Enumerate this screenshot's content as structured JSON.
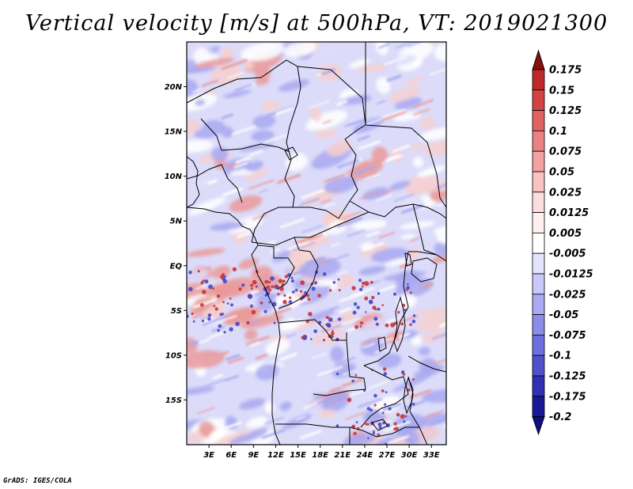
{
  "title": "Vertical velocity [m/s] at 500hPa, VT: 2019021300",
  "credit": "GrADS: IGES/COLA",
  "map": {
    "lon_range": [
      0,
      35
    ],
    "lat_range": [
      -20,
      25
    ],
    "x_ticks": [
      {
        "value": 3,
        "label": "3E"
      },
      {
        "value": 6,
        "label": "6E"
      },
      {
        "value": 9,
        "label": "9E"
      },
      {
        "value": 12,
        "label": "12E"
      },
      {
        "value": 15,
        "label": "15E"
      },
      {
        "value": 18,
        "label": "18E"
      },
      {
        "value": 21,
        "label": "21E"
      },
      {
        "value": 24,
        "label": "24E"
      },
      {
        "value": 27,
        "label": "27E"
      },
      {
        "value": 30,
        "label": "30E"
      },
      {
        "value": 33,
        "label": "33E"
      }
    ],
    "y_ticks": [
      {
        "value": 20,
        "label": "20N"
      },
      {
        "value": 15,
        "label": "15N"
      },
      {
        "value": 10,
        "label": "10N"
      },
      {
        "value": 5,
        "label": "5N"
      },
      {
        "value": 0,
        "label": "EQ"
      },
      {
        "value": -5,
        "label": "5S"
      },
      {
        "value": -10,
        "label": "10S"
      },
      {
        "value": -15,
        "label": "15S"
      }
    ]
  },
  "colorbar": {
    "levels": [
      {
        "label": "0.175",
        "color": "#a01818"
      },
      {
        "label": "0.15",
        "color": "#be2a2a"
      },
      {
        "label": "0.125",
        "color": "#d24444"
      },
      {
        "label": "0.1",
        "color": "#e06262"
      },
      {
        "label": "0.075",
        "color": "#ea8282"
      },
      {
        "label": "0.05",
        "color": "#f2a2a2"
      },
      {
        "label": "0.025",
        "color": "#f8c2c2"
      },
      {
        "label": "0.0125",
        "color": "#fcdede"
      },
      {
        "label": "0.005",
        "color": "#fff0f0"
      },
      {
        "label": "-0.005",
        "color": "#ffffff"
      },
      {
        "label": "-0.0125",
        "color": "#e4e4ff"
      },
      {
        "label": "-0.025",
        "color": "#c8c8fa"
      },
      {
        "label": "-0.05",
        "color": "#aaaaf4"
      },
      {
        "label": "-0.075",
        "color": "#8c8cea"
      },
      {
        "label": "-0.1",
        "color": "#6e6ede"
      },
      {
        "label": "-0.125",
        "color": "#5050cc"
      },
      {
        "label": "-0.175",
        "color": "#3030b4"
      },
      {
        "label": "-0.2",
        "color": "#181898"
      }
    ],
    "top_arrow_color": "#8a0e0e",
    "bottom_arrow_color": "#0e0e86"
  },
  "field_colors": {
    "neutral": "#ffffff",
    "weak_up": "#f6d0d0",
    "mod_up": "#ea9a9a",
    "strong_up": "#c83434",
    "weak_down": "#dcdcfa",
    "mod_down": "#a8a8f0",
    "strong_down": "#4848c8",
    "boundary": "#000000"
  }
}
